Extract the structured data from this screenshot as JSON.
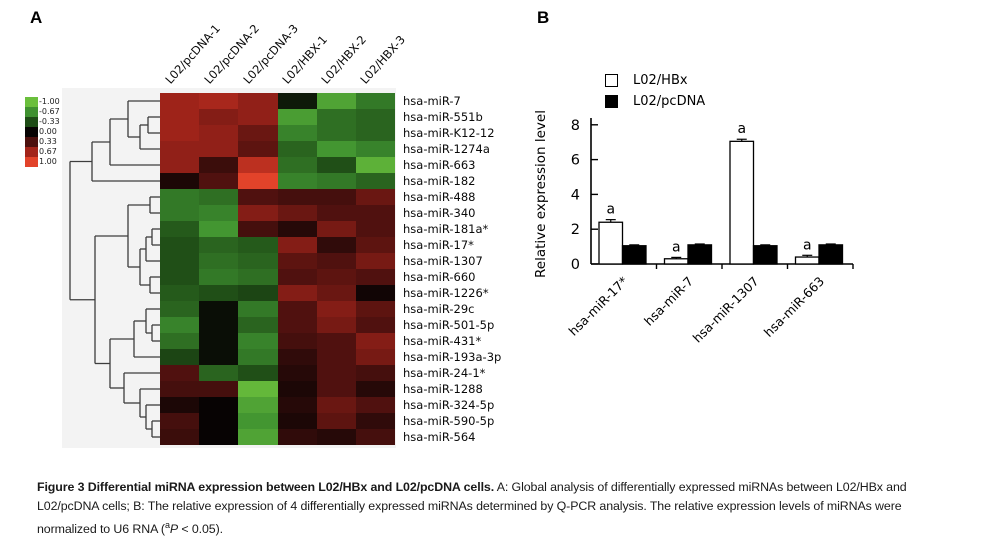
{
  "panel_a": {
    "label": "A"
  },
  "panel_b": {
    "label": "B"
  },
  "chart_data": [
    {
      "type": "heatmap",
      "columns": [
        "L02/pcDNA-1",
        "L02/pcDNA-2",
        "L02/pcDNA-3",
        "L02/HBX-1",
        "L02/HBX-2",
        "L02/HBX-3"
      ],
      "rows": [
        "hsa-miR-7",
        "hsa-miR-551b",
        "hsa-miR-K12-12",
        "hsa-miR-1274a",
        "hsa-miR-663",
        "hsa-miR-182",
        "hsa-miR-488",
        "hsa-miR-340",
        "hsa-miR-181a*",
        "hsa-miR-17*",
        "hsa-miR-1307",
        "hsa-miR-660",
        "hsa-miR-1226*",
        "hsa-miR-29c",
        "hsa-miR-501-5p",
        "hsa-miR-431*",
        "hsa-miR-193a-3p",
        "hsa-miR-24-1*",
        "hsa-miR-1288",
        "hsa-miR-324-5p",
        "hsa-miR-590-5p",
        "hsa-miR-564"
      ],
      "values": [
        [
          0.65,
          0.7,
          0.6,
          -0.1,
          -0.8,
          -0.55
        ],
        [
          0.65,
          0.55,
          0.6,
          -0.75,
          -0.5,
          -0.45
        ],
        [
          0.65,
          0.6,
          0.45,
          -0.6,
          -0.5,
          -0.45
        ],
        [
          0.6,
          0.6,
          0.4,
          -0.45,
          -0.7,
          -0.6
        ],
        [
          0.6,
          0.25,
          0.8,
          -0.5,
          -0.35,
          -0.9
        ],
        [
          0.1,
          0.35,
          1.0,
          -0.6,
          -0.55,
          -0.45
        ],
        [
          -0.55,
          -0.5,
          0.35,
          0.3,
          0.3,
          0.45
        ],
        [
          -0.55,
          -0.6,
          0.55,
          0.45,
          0.35,
          0.35
        ],
        [
          -0.4,
          -0.7,
          0.3,
          0.15,
          0.5,
          0.35
        ],
        [
          -0.35,
          -0.45,
          -0.4,
          0.55,
          0.2,
          0.4
        ],
        [
          -0.35,
          -0.5,
          -0.45,
          0.4,
          0.35,
          0.5
        ],
        [
          -0.35,
          -0.55,
          -0.5,
          0.35,
          0.4,
          0.35
        ],
        [
          -0.4,
          -0.35,
          -0.3,
          0.55,
          0.45,
          0.05
        ],
        [
          -0.45,
          -0.05,
          -0.55,
          0.35,
          0.55,
          0.4
        ],
        [
          -0.6,
          -0.05,
          -0.45,
          0.35,
          0.5,
          0.35
        ],
        [
          -0.5,
          -0.05,
          -0.6,
          0.3,
          0.35,
          0.55
        ],
        [
          -0.3,
          -0.05,
          -0.55,
          0.2,
          0.35,
          0.5
        ],
        [
          0.35,
          -0.45,
          -0.35,
          0.15,
          0.35,
          0.3
        ],
        [
          0.3,
          0.3,
          -0.95,
          0.1,
          0.35,
          0.15
        ],
        [
          0.1,
          0.0,
          -0.8,
          0.15,
          0.45,
          0.35
        ],
        [
          0.3,
          0.0,
          -0.7,
          0.1,
          0.4,
          0.2
        ],
        [
          0.25,
          0.0,
          -0.8,
          0.2,
          0.15,
          0.3
        ]
      ],
      "color_scale": {
        "labels": [
          "-1.00",
          "-0.67",
          "-0.33",
          "0.00",
          "0.33",
          "0.67",
          "1.00"
        ],
        "colors": [
          "#6abf3c",
          "#3f9130",
          "#1e4c16",
          "#070303",
          "#4c100e",
          "#a2241a",
          "#e2432a"
        ]
      },
      "dendrogram_merges": [
        {
          "a": "L1",
          "b": "L2",
          "x": 148
        },
        {
          "a": "M0",
          "b": "L3",
          "x": 140
        },
        {
          "a": "L0",
          "b": "M1",
          "x": 128
        },
        {
          "a": "M2",
          "b": "L4",
          "x": 110
        },
        {
          "a": "M3",
          "b": "L5",
          "x": 92
        },
        {
          "a": "L6",
          "b": "L7",
          "x": 150
        },
        {
          "a": "L8",
          "b": "L9",
          "x": 152
        },
        {
          "a": "M6",
          "b": "L10",
          "x": 146
        },
        {
          "a": "L11",
          "b": "L12",
          "x": 150
        },
        {
          "a": "M7",
          "b": "M8",
          "x": 140
        },
        {
          "a": "M5",
          "b": "M9",
          "x": 128
        },
        {
          "a": "L14",
          "b": "L15",
          "x": 152
        },
        {
          "a": "L13",
          "b": "M11",
          "x": 146
        },
        {
          "a": "M12",
          "b": "L16",
          "x": 134
        },
        {
          "a": "L20",
          "b": "L21",
          "x": 152
        },
        {
          "a": "L19",
          "b": "M14",
          "x": 146
        },
        {
          "a": "L18",
          "b": "M15",
          "x": 140
        },
        {
          "a": "L17",
          "b": "M16",
          "x": 124
        },
        {
          "a": "M13",
          "b": "M17",
          "x": 110
        },
        {
          "a": "M10",
          "b": "M18",
          "x": 95
        },
        {
          "a": "M4",
          "b": "M19",
          "x": 70
        }
      ]
    },
    {
      "type": "bar",
      "categories": [
        "hsa-miR-17*",
        "hsa-miR-7",
        "hsa-miR-1307",
        "hsa-miR-663"
      ],
      "series": [
        {
          "name": "L02/HBx",
          "fill": "#ffffff",
          "values": [
            2.4,
            0.3,
            7.05,
            0.4
          ],
          "errors": [
            0.15,
            0.08,
            0.12,
            0.1
          ],
          "sig": [
            "a",
            "a",
            "a",
            "a"
          ]
        },
        {
          "name": "L02/pcDNA",
          "fill": "#000000",
          "values": [
            1.05,
            1.1,
            1.05,
            1.1
          ],
          "errors": [
            0.05,
            0.05,
            0.05,
            0.05
          ],
          "sig": [
            "",
            "",
            "",
            ""
          ]
        }
      ],
      "ylabel": "Relative expression level",
      "yticks": [
        "0",
        "2",
        "4",
        "6",
        "8"
      ],
      "ylim": [
        0,
        8
      ],
      "legend_position": "top-left"
    }
  ],
  "caption": {
    "title": "Figure 3  Differential miRNA expression between L02/HBx and L02/pcDNA cells.",
    "body": " A: Global analysis of differentially expressed miRNAs between L02/HBx and L02/pcDNA cells; B: The relative expression of 4 differentially expressed miRNAs determined by Q-PCR analysis. The relative expression levels of miRNAs were normalized to U6 RNA (",
    "sup": "a",
    "italic_p": "P",
    "tail": " < 0.05)."
  }
}
